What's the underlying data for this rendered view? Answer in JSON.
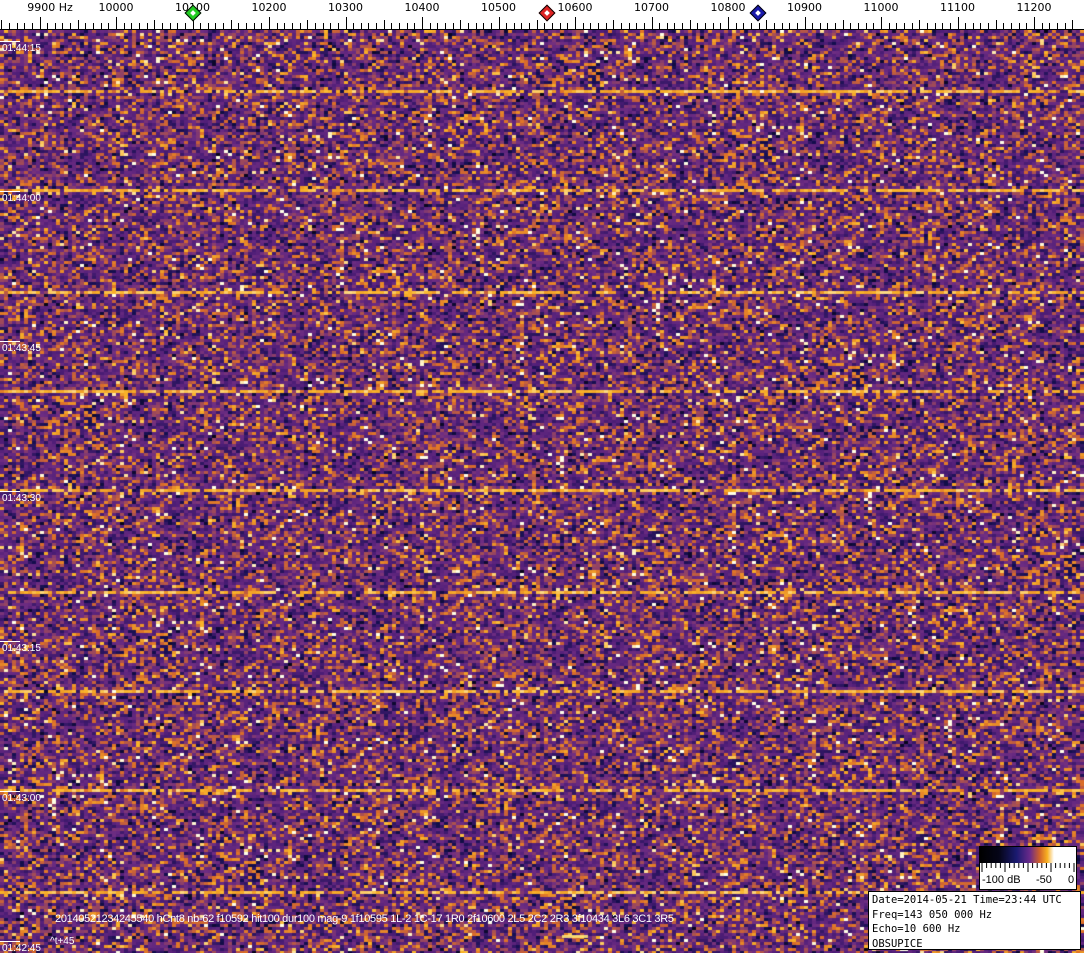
{
  "frequency_axis": {
    "unit_label": "9900 Hz",
    "ticks": [
      "10000",
      "10100",
      "10200",
      "10300",
      "10400",
      "10500",
      "10600",
      "10700",
      "10800",
      "10900",
      "11000",
      "11100",
      "11200"
    ],
    "tick_values": [
      10000,
      10100,
      10200,
      10300,
      10400,
      10500,
      10600,
      10700,
      10800,
      10900,
      11000,
      11100,
      11200
    ]
  },
  "markers": [
    {
      "name": "green-marker",
      "freq_hz": 10101,
      "color": "#22cc22"
    },
    {
      "name": "red-marker",
      "freq_hz": 10563,
      "color": "#dd2222"
    },
    {
      "name": "blue-marker",
      "freq_hz": 10839,
      "color": "#1a1aaa"
    }
  ],
  "time_axis": [
    "01:44:15",
    "01:44:00",
    "01:43:45",
    "01:43:30",
    "01:43:15",
    "01:43:00",
    "01:42:45"
  ],
  "detection_text": "20140521234245540 hCnt8 nb-62 f10592 hit100 dur100 mag-9 1f10595 1L-2 1C-17 1R0 2f10600 2L5 2C2 2R3 3f10434 3L6 3C1 3R5",
  "relative_time": "^t+45",
  "colorbar": {
    "min_label": "-100 dB",
    "mid_label": "-50",
    "max_label": "0"
  },
  "info": {
    "date_time": "Date=2014-05-21 Time=23:44 UTC",
    "freq": "Freq=143 050 000 Hz",
    "echo": "Echo=10 600 Hz",
    "station": "OBSUPICE"
  },
  "colors": {
    "background_noise": "#5a2a80",
    "signal": "#f0a020"
  }
}
